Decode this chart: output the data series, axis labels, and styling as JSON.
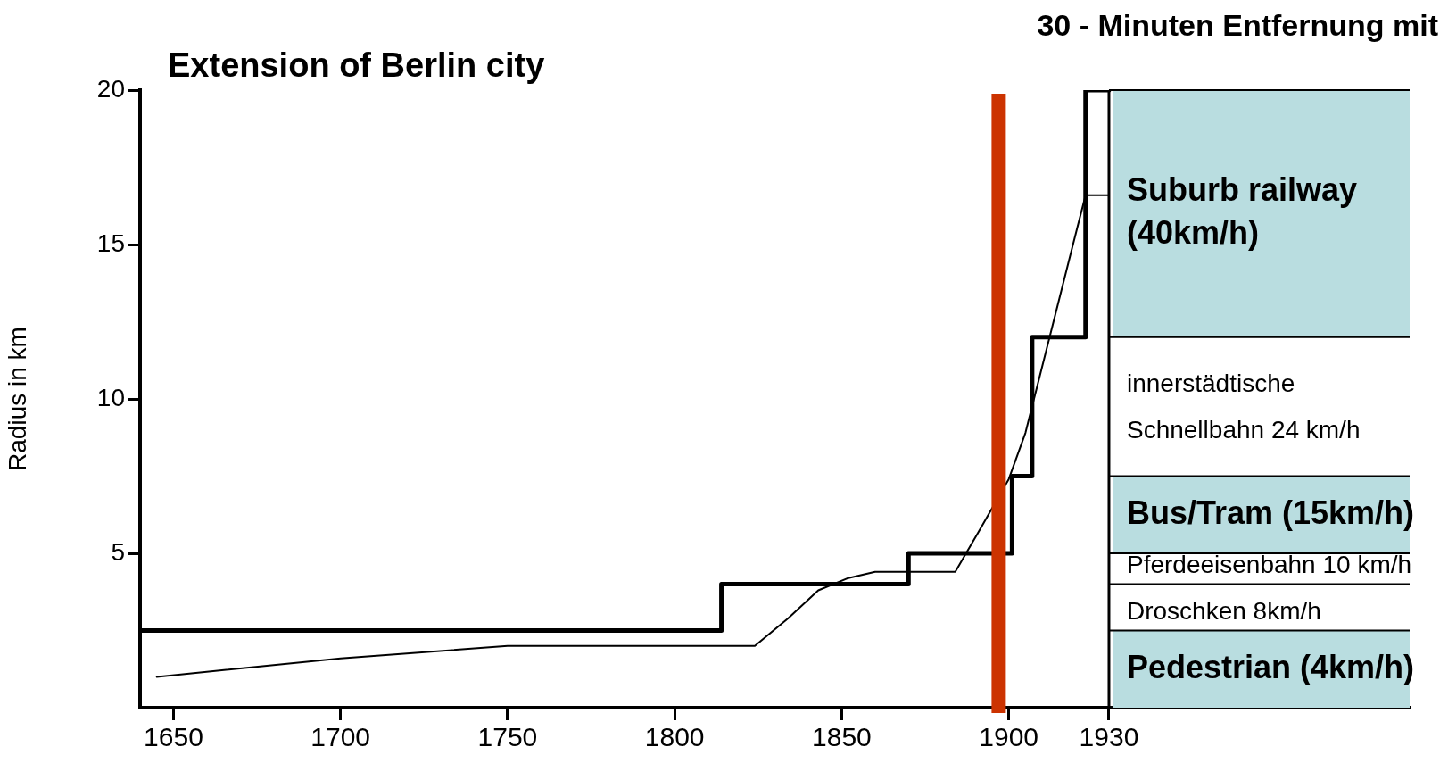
{
  "chart_data": {
    "type": "line",
    "title": "Extension of Berlin city",
    "ylabel": "Radius in km",
    "xlim": [
      1640,
      2020
    ],
    "xticks": [
      1650,
      1700,
      1750,
      1800,
      1850,
      1900,
      1930
    ],
    "ylim": [
      0,
      20
    ],
    "yticks": [
      5,
      10,
      15,
      20
    ],
    "grid": false,
    "legend": false,
    "marker": "none",
    "line_style": "solid",
    "series": [
      {
        "type": "step",
        "color": "#000000",
        "x": [
          1640,
          1814,
          1870,
          1901,
          1907,
          1923,
          1930
        ],
        "values": [
          2.5,
          4,
          5,
          7.5,
          12,
          20,
          20
        ]
      },
      {
        "type": "line",
        "color": "#000000",
        "x": [
          1645,
          1700,
          1750,
          1800,
          1824,
          1834,
          1843,
          1852,
          1860,
          1884,
          1891,
          1900,
          1905,
          1912,
          1919,
          1923,
          1930
        ],
        "values": [
          1.0,
          1.6,
          2.0,
          2.0,
          2.0,
          2.9,
          3.8,
          4.2,
          4.4,
          4.4,
          5.7,
          7.4,
          8.9,
          11.9,
          14.9,
          16.6,
          16.6
        ]
      }
    ],
    "ref_lines": [
      {
        "axis": "x",
        "value": 1930,
        "color": "#000000"
      },
      {
        "axis": "x",
        "value": 1897,
        "color": "#cc3300"
      },
      {
        "axis": "y",
        "value": 2.5,
        "color": "#000000",
        "label": "Droschken 8km/h"
      },
      {
        "axis": "y",
        "value": 4,
        "color": "#000000",
        "label": "Pferdeeisenbahn 10 km/h"
      },
      {
        "axis": "y",
        "value": 5,
        "color": "#000000"
      },
      {
        "axis": "y",
        "value": 7.5,
        "color": "#000000",
        "label": "innerstädtische Schnellbahn 24 km/h"
      },
      {
        "axis": "y",
        "value": 12,
        "color": "#000000"
      },
      {
        "axis": "y",
        "value": 20,
        "color": "#000000"
      }
    ],
    "bands": [
      {
        "axis": "y",
        "from": 0,
        "to": 2.5,
        "label": "Pedestrian (4km/h)",
        "color": "#b9dde0"
      },
      {
        "axis": "y",
        "from": 5,
        "to": 7.5,
        "label": "Bus/Tram (15km/h)",
        "color": "#b9dde0"
      },
      {
        "axis": "y",
        "from": 12,
        "to": 20,
        "label": "Suburb railway (40km/h)",
        "color": "#b9dde0"
      }
    ],
    "annotations": [
      "30 - Minuten Entfernung mit"
    ]
  }
}
